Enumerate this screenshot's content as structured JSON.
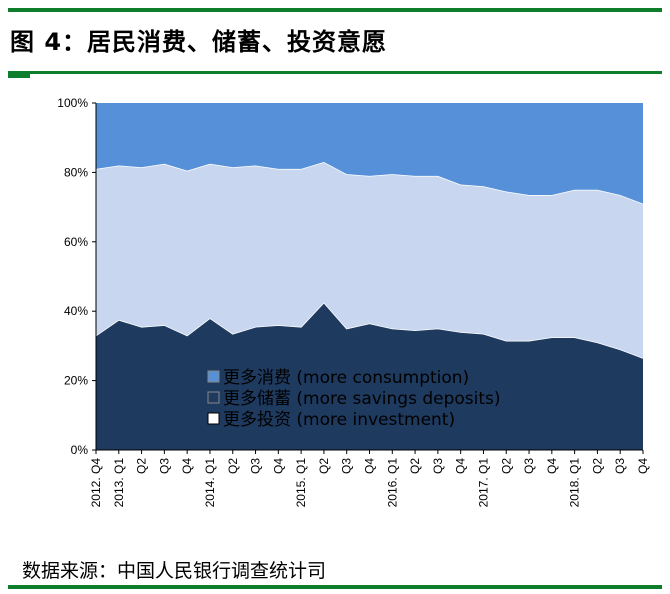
{
  "header": {
    "title": "图 4：居民消费、储蓄、投资意愿"
  },
  "footer": {
    "source": "数据来源：中国人民银行调查统计司"
  },
  "colors": {
    "consumption": "#5590d8",
    "savings": "#1e3a5f",
    "investment": "#c8d7ef",
    "rule": "#0e7d2c"
  },
  "chart_data": {
    "type": "area",
    "stacked": true,
    "title": "",
    "xlabel": "",
    "ylabel": "",
    "ylim": [
      0,
      100
    ],
    "y_ticks": [
      "0%",
      "20%",
      "40%",
      "60%",
      "80%",
      "100%"
    ],
    "grid": false,
    "legend_position": "lower-center",
    "x": [
      "2012. Q4",
      "2013. Q1",
      "Q2",
      "Q3",
      "Q4",
      "2014. Q1",
      "Q2",
      "Q3",
      "Q4",
      "2015. Q1",
      "Q2",
      "Q3",
      "Q4",
      "2016. Q1",
      "Q2",
      "Q3",
      "Q4",
      "2017. Q1",
      "Q2",
      "Q3",
      "Q4",
      "2018. Q1",
      "Q2",
      "Q3",
      "Q4"
    ],
    "series": [
      {
        "name": "更多储蓄 (more savings deposits)",
        "key": "savings",
        "values": [
          33,
          37.5,
          35.5,
          36,
          33,
          38,
          33.5,
          35.5,
          36,
          35.5,
          42.5,
          35,
          36.5,
          35,
          34.5,
          35,
          34,
          33.5,
          31.5,
          31.5,
          32.5,
          32.5,
          31,
          29,
          26.5
        ]
      },
      {
        "name": "更多投资 (more investment)",
        "key": "investment",
        "values": [
          48,
          44.5,
          46,
          46.5,
          47.5,
          44.5,
          48,
          46.5,
          45,
          45.5,
          40.5,
          44.5,
          42.5,
          44.5,
          44.5,
          44,
          42.5,
          42.5,
          43,
          42,
          41,
          42.5,
          44,
          44.5,
          44.5
        ]
      },
      {
        "name": "更多消费 (more consumption)",
        "key": "consumption",
        "values": [
          19,
          18,
          18.5,
          17.5,
          19.5,
          17.5,
          18.5,
          18,
          19,
          19,
          17,
          20.5,
          21,
          20.5,
          21,
          21,
          23.5,
          24,
          25.5,
          26.5,
          26.5,
          25,
          25,
          26.5,
          29
        ]
      }
    ],
    "legend": [
      {
        "marker": "■",
        "label": "更多消费 (more consumption)",
        "key": "consumption"
      },
      {
        "marker": "■",
        "label": "更多储蓄 (more savings deposits)",
        "key": "savings"
      },
      {
        "marker": "□",
        "label": "更多投资 (more investment)",
        "key": "investment"
      }
    ]
  }
}
